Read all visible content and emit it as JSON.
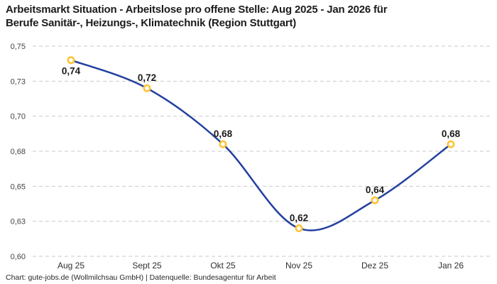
{
  "title": "Arbeitsmarkt Situation - Arbeitslose pro offene Stelle: Aug 2025 - Jan 2026 für\nBerufe Sanitär-, Heizungs-, Klimatechnik (Region Stuttgart)",
  "footer": {
    "credit": "Chart: gute-jobs.de (Wollmilchsau GmbH) | Datenquelle: Bundesagentur für Arbeit"
  },
  "colors": {
    "line": "#23409f",
    "marker_ring": "#fdc435",
    "marker_fill": "#ffffff",
    "grid": "#c9c9c9",
    "point_label": "#1b1b1b",
    "tick_label": "#444444",
    "x_label": "#2f2f2f"
  },
  "chart_data": {
    "type": "line",
    "title": "Arbeitsmarkt Situation - Arbeitslose pro offene Stelle: Aug 2025 - Jan 2026 für Berufe Sanitär-, Heizungs-, Klimatechnik (Region Stuttgart)",
    "xlabel": "",
    "ylabel": "",
    "categories": [
      "Aug 25",
      "Sept 25",
      "Okt 25",
      "Nov 25",
      "Dez 25",
      "Jan 26"
    ],
    "values": [
      0.74,
      0.72,
      0.68,
      0.62,
      0.64,
      0.68
    ],
    "point_labels": [
      "0,74",
      "0,72",
      "0,68",
      "0,62",
      "0,64",
      "0,68"
    ],
    "y_tick_values": [
      0.75,
      0.725,
      0.7,
      0.675,
      0.65,
      0.625,
      0.6
    ],
    "y_tick_labels": [
      "0,75",
      "0,73",
      "0,70",
      "0,68",
      "0,65",
      "0,63",
      "0,60"
    ],
    "ylim": [
      0.6,
      0.75
    ],
    "grid": "horizontal-dashed",
    "legend_position": "none",
    "smooth": true
  }
}
